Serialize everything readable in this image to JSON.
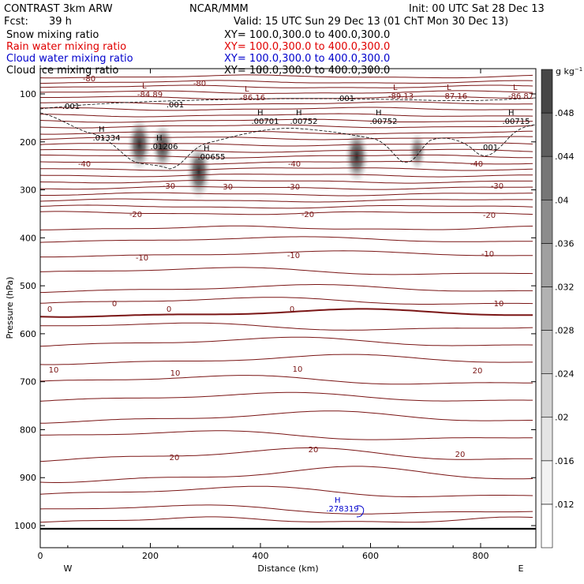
{
  "header": {
    "model": "CONTRAST  3km ARW",
    "org": "NCAR/MMM",
    "init": "Init: 00 UTC Sat 28 Dec 13",
    "fcst_label": "Fcst:",
    "fcst_value": "39 h",
    "valid": "Valid: 15 UTC Sun 29 Dec 13 (01 ChT Mon 30 Dec 13)",
    "fields": [
      {
        "name": "Snow mixing ratio",
        "xy": "XY= 100.0,300.0 to 400.0,300.0",
        "color": "#000000"
      },
      {
        "name": "Rain water mixing ratio",
        "xy": "XY= 100.0,300.0 to 400.0,300.0",
        "color": "#e00000"
      },
      {
        "name": "Cloud water mixing ratio",
        "xy": "XY= 100.0,300.0 to 400.0,300.0",
        "color": "#0000cc"
      },
      {
        "name": "Cloud ice mixing ratio",
        "xy": "XY= 100.0,300.0 to 400.0,300.0",
        "color": "#000000"
      }
    ]
  },
  "chart_data": {
    "type": "contour",
    "xlabel": "Distance (km)",
    "ylabel": "Pressure (hPa)",
    "x_ticks": [
      0,
      200,
      400,
      600,
      800
    ],
    "y_ticks": [
      100,
      200,
      300,
      400,
      500,
      600,
      700,
      800,
      900,
      1000
    ],
    "xlim": [
      0,
      900
    ],
    "ylim": [
      40,
      1050
    ],
    "y_inverted": true,
    "west_label": "W",
    "east_label": "E",
    "colorbar": {
      "unit": "g kg",
      "unit_exp": "−1",
      "levels": [
        ".012",
        ".016",
        ".02",
        ".024",
        ".028",
        ".032",
        ".036",
        ".04",
        ".044",
        ".048"
      ],
      "colors": [
        "#ffffff",
        "#f2f2f2",
        "#e4e4e4",
        "#d4d4d4",
        "#c4c4c4",
        "#b2b2b2",
        "#a0a0a0",
        "#8c8c8c",
        "#767676",
        "#5e5e5e",
        "#464646"
      ]
    },
    "temperature_contour_labels": [
      "-80",
      "-80",
      "-40",
      "-40",
      "-40",
      "-30",
      "-30",
      "-30",
      "-30",
      "-20",
      "-20",
      "-20",
      "-10",
      "-10",
      "-10",
      "0",
      "0",
      "0",
      "0",
      "10",
      "10",
      "10",
      "10",
      "20",
      "20",
      "20",
      "20"
    ],
    "extrema": [
      {
        "kind": "L",
        "value": "-84.89"
      },
      {
        "kind": "L",
        "value": "-86.16"
      },
      {
        "kind": "L",
        "value": "-89.13"
      },
      {
        "kind": "L",
        "value": "-87.16"
      },
      {
        "kind": "L",
        "value": "-86.87"
      },
      {
        "kind": "H",
        "value": ".01334"
      },
      {
        "kind": "H",
        "value": ".01206"
      },
      {
        "kind": "H",
        "value": ".00655"
      },
      {
        "kind": "H",
        "value": ".00701"
      },
      {
        "kind": "H",
        "value": ".00752"
      },
      {
        "kind": "H",
        "value": ".00752"
      },
      {
        "kind": "H",
        "value": ".00715"
      },
      {
        "kind": "H",
        "value": ".278319"
      }
    ],
    "ice_contour_labels": [
      ".001",
      ".001",
      ".001",
      ".001"
    ],
    "shaded_cells": [
      {
        "x_km": 180,
        "p_hpa": 205,
        "peak": 0.046
      },
      {
        "x_km": 222,
        "p_hpa": 210,
        "peak": 0.04
      },
      {
        "x_km": 288,
        "p_hpa": 262,
        "peak": 0.048
      },
      {
        "x_km": 575,
        "p_hpa": 230,
        "peak": 0.046
      },
      {
        "x_km": 685,
        "p_hpa": 220,
        "peak": 0.03
      }
    ],
    "grid": false
  }
}
